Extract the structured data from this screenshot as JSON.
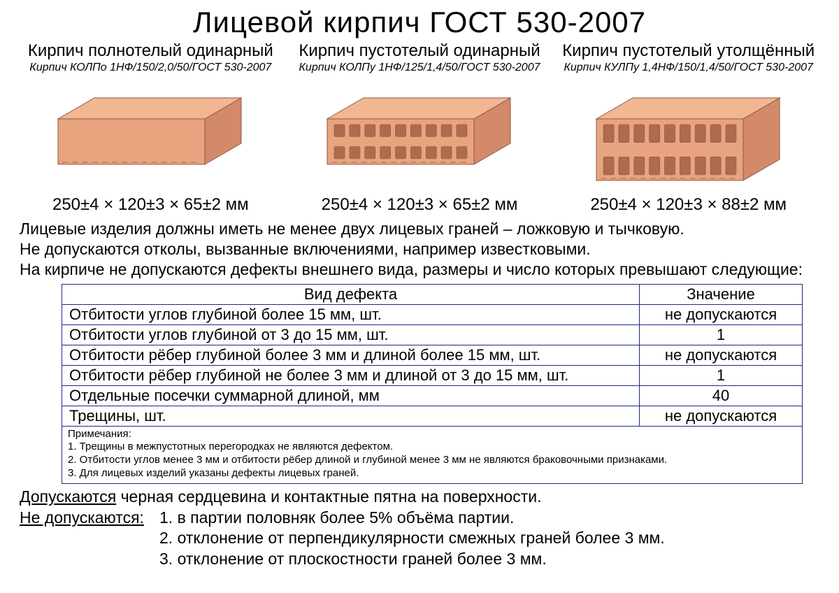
{
  "title": "Лицевой кирпич ГОСТ 530-2007",
  "colors": {
    "text": "#000000",
    "table_border": "#1a2a8a",
    "background": "#ffffff",
    "brick_top": "#f2b693",
    "brick_front": "#e8a47e",
    "brick_side": "#d4896a",
    "brick_hole": "#b06a4e",
    "brick_stroke": "#8a5a42"
  },
  "bricks": [
    {
      "title": "Кирпич полнотелый одинарный",
      "subtitle": "Кирпич КОЛПо 1НФ/150/2,0/50/ГОСТ 530-2007",
      "dimensions": "250±4 × 120±3 × 65±2 мм",
      "type": "solid",
      "height_ratio": 0.65
    },
    {
      "title": "Кирпич пустотелый одинарный",
      "subtitle": "Кирпич КОЛПу 1НФ/125/1,4/50/ГОСТ 530-2007",
      "dimensions": "250±4 × 120±3 × 65±2 мм",
      "type": "hollow",
      "height_ratio": 0.65,
      "hole_rows": 2,
      "hole_cols": 9
    },
    {
      "title": "Кирпич пустотелый утолщённый",
      "subtitle": "Кирпич КУЛПу 1,4НФ/150/1,4/50/ГОСТ 530-2007",
      "dimensions": "250±4 × 120±3 × 88±2 мм",
      "type": "hollow",
      "height_ratio": 0.88,
      "hole_rows": 2,
      "hole_cols": 9
    }
  ],
  "body_paragraphs": [
    "Лицевые изделия должны иметь не менее двух лицевых граней – ложковую и тычковую.",
    "Не допускаются отколы, вызванные включениями, например известковыми.",
    "На кирпиче не допускаются дефекты внешнего вида, размеры и число которых превышают следующие:"
  ],
  "defects_table": {
    "columns": [
      "Вид дефекта",
      "Значение"
    ],
    "col_widths": [
      "78%",
      "22%"
    ],
    "rows": [
      [
        "Отбитости углов глубиной более 15 мм, шт.",
        "не допускаются"
      ],
      [
        "Отбитости углов глубиной от 3 до 15 мм, шт.",
        "1"
      ],
      [
        "Отбитости рёбер глубиной более 3 мм и длиной более 15 мм, шт.",
        "не допускаются"
      ],
      [
        "Отбитости рёбер глубиной не более 3 мм и длиной от 3 до 15 мм, шт.",
        "1"
      ],
      [
        "Отдельные посечки суммарной длиной, мм",
        "40"
      ],
      [
        "Трещины, шт.",
        "не допускаются"
      ]
    ]
  },
  "notes": {
    "header": "Примечания:",
    "items": [
      "1. Трещины в межпустотных перегородках не являются дефектом.",
      "2. Отбитости углов менее 3 мм и отбитости рёбер длиной и глубиной менее 3 мм не являются браковочными признаками.",
      "3. Для лицевых изделий указаны дефекты лицевых граней."
    ]
  },
  "allowed": {
    "label": "Допускаются",
    "text": "черная сердцевина и контактные пятна на поверхности."
  },
  "not_allowed": {
    "label": "Не допускаются:",
    "items": [
      "1.  в партии половняк более 5% объёма партии.",
      "2.  отклонение от перпендикулярности смежных граней более 3 мм.",
      "3.  отклонение от плоскостности граней более 3 мм."
    ]
  }
}
